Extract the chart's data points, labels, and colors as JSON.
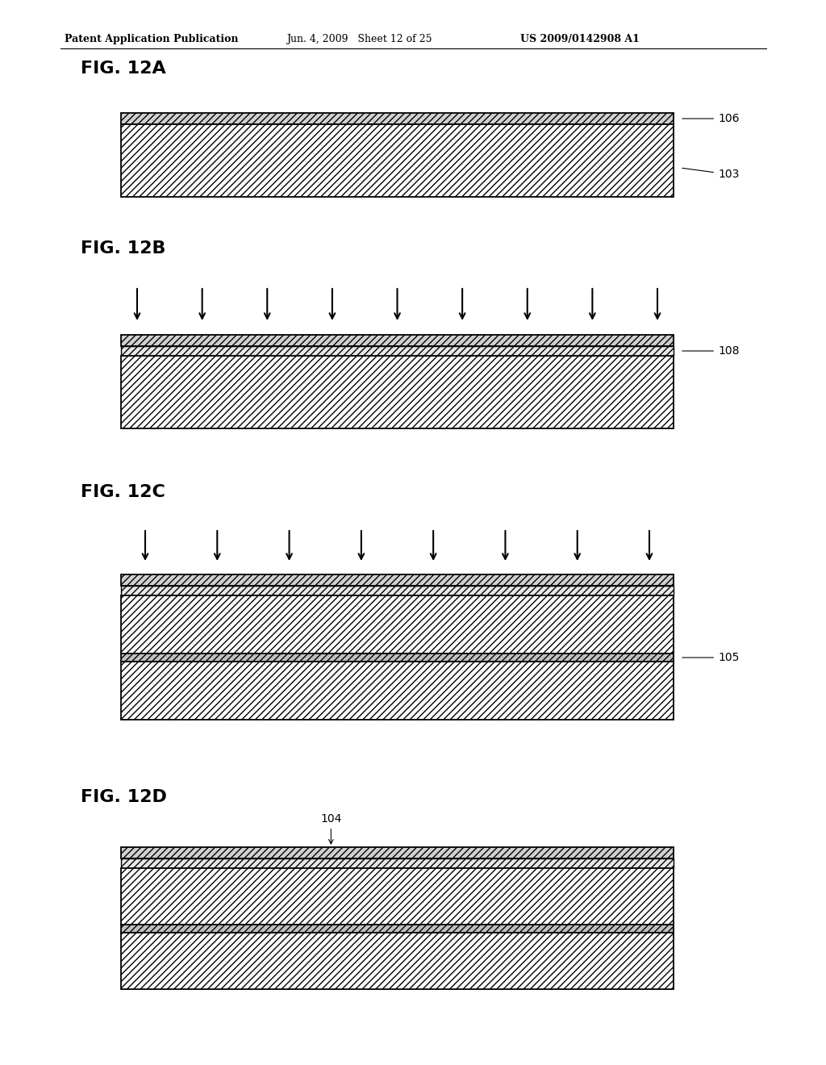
{
  "header_left": "Patent Application Publication",
  "header_mid": "Jun. 4, 2009   Sheet 12 of 25",
  "header_right": "US 2009/0142908 A1",
  "bg_color": "#ffffff",
  "fig_labels": [
    "FIG. 12A",
    "FIG. 12B",
    "FIG. 12C",
    "FIG. 12D"
  ],
  "layer_labels": {
    "106": "106",
    "103": "103",
    "108": "108",
    "105": "105",
    "104": "104"
  },
  "arrow_n_b": 9,
  "arrow_n_c": 8
}
